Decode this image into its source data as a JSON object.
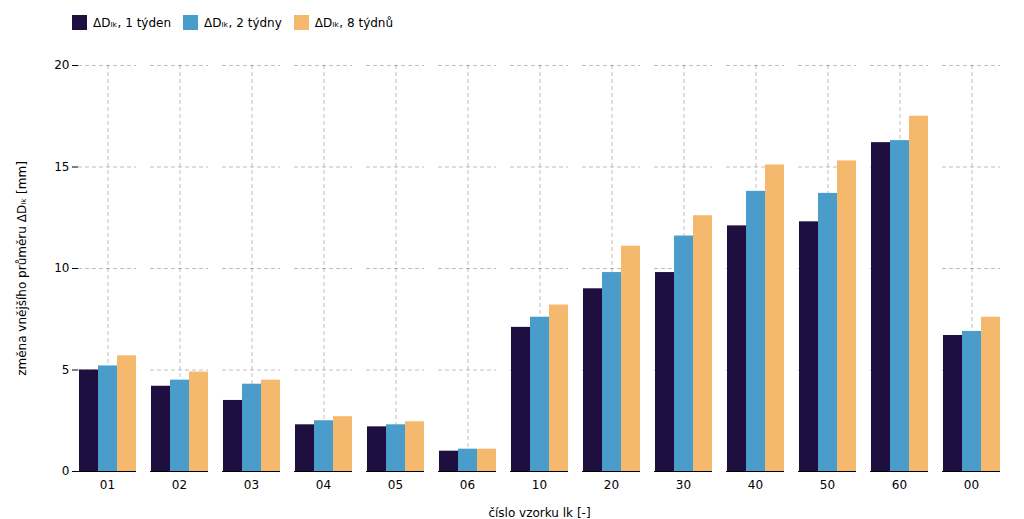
{
  "chart_data": {
    "type": "bar",
    "categories": [
      "01",
      "02",
      "03",
      "04",
      "05",
      "06",
      "10",
      "20",
      "30",
      "40",
      "50",
      "60",
      "00"
    ],
    "series": [
      {
        "name": "ΔDₗₖ, 1 týden",
        "color": "#1e0f40",
        "values": [
          5.0,
          4.2,
          3.5,
          2.3,
          2.2,
          1.0,
          7.1,
          9.0,
          9.8,
          12.1,
          12.3,
          16.2,
          6.7
        ]
      },
      {
        "name": "ΔDₗₖ, 2 týdny",
        "color": "#4a9cca",
        "values": [
          5.2,
          4.5,
          4.3,
          2.5,
          2.3,
          1.1,
          7.6,
          9.8,
          11.6,
          13.8,
          13.7,
          16.3,
          6.9
        ]
      },
      {
        "name": "ΔDₗₖ, 8 týdnů",
        "color": "#f5b96e",
        "values": [
          5.7,
          4.9,
          4.5,
          2.7,
          2.45,
          1.1,
          8.2,
          11.1,
          12.6,
          15.1,
          15.3,
          17.5,
          7.6
        ]
      }
    ],
    "xlabel": "číslo vzorku lk [-]",
    "ylabel": "změna vnějšího průměru ΔDₗₖ [mm]",
    "ylim": [
      0,
      20
    ],
    "yticks": [
      0,
      5,
      10,
      15,
      20
    ],
    "grid": true,
    "legend": "upper left"
  }
}
